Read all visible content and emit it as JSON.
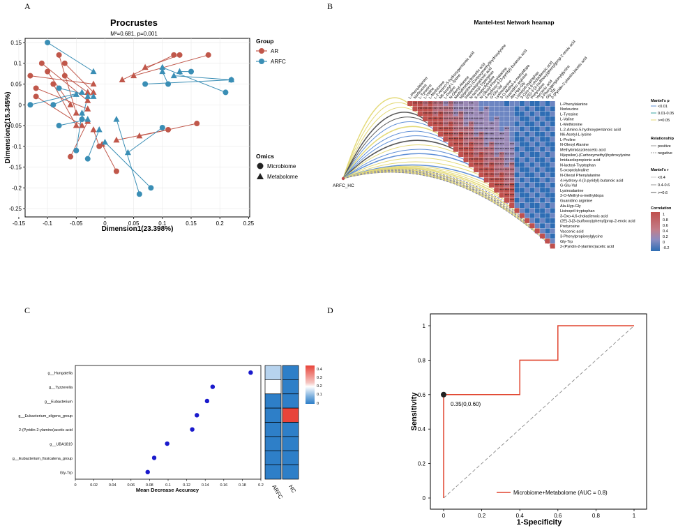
{
  "panels": {
    "a": "A",
    "b": "B",
    "c": "C",
    "d": "D"
  },
  "chart_data": [
    {
      "type": "scatter",
      "title": "Procrustes",
      "subtitle": "M²=0.681, p=0.001",
      "xlabel": "Dimension1(23.398%)",
      "ylabel": "Dimension2(15.345%)",
      "xlim": [
        -0.15,
        0.25
      ],
      "ylim": [
        -0.27,
        0.16
      ],
      "xticks": [
        "-0.15",
        "-0.1",
        "-0.05",
        "0",
        "0.05",
        "0.1",
        "0.15",
        "0.2",
        "0.25"
      ],
      "yticks": [
        "-0.25",
        "-0.2",
        "-0.15",
        "-0.1",
        "-0.05",
        "0",
        "0.05",
        "0.1",
        "0.15"
      ],
      "legend_group_title": "Group",
      "legend_omics_title": "Omics",
      "groups": [
        {
          "name": "AR",
          "color": "#C0574A"
        },
        {
          "name": "ARFC",
          "color": "#3A8EB5"
        }
      ],
      "omics": [
        "Microbiome",
        "Metabolome"
      ],
      "pairs": [
        {
          "group": "AR",
          "m": [
            -0.13,
            0.07
          ],
          "t": [
            -0.02,
            0.05
          ]
        },
        {
          "group": "AR",
          "m": [
            -0.11,
            0.1
          ],
          "t": [
            -0.03,
            0.01
          ]
        },
        {
          "group": "AR",
          "m": [
            -0.08,
            0.12
          ],
          "t": [
            -0.05,
            -0.02
          ]
        },
        {
          "group": "AR",
          "m": [
            -0.12,
            0.02
          ],
          "t": [
            -0.04,
            -0.05
          ]
        },
        {
          "group": "AR",
          "m": [
            -0.1,
            0.08
          ],
          "t": [
            -0.06,
            0.0
          ]
        },
        {
          "group": "AR",
          "m": [
            -0.09,
            0.05
          ],
          "t": [
            -0.05,
            -0.05
          ]
        },
        {
          "group": "AR",
          "m": [
            -0.12,
            0.04
          ],
          "t": [
            -0.03,
            -0.01
          ]
        },
        {
          "group": "AR",
          "m": [
            -0.07,
            0.1
          ],
          "t": [
            -0.02,
            0.03
          ]
        },
        {
          "group": "AR",
          "m": [
            0.12,
            0.12
          ],
          "t": [
            0.03,
            0.06
          ]
        },
        {
          "group": "AR",
          "m": [
            0.18,
            0.12
          ],
          "t": [
            0.05,
            0.07
          ]
        },
        {
          "group": "AR",
          "m": [
            0.13,
            0.12
          ],
          "t": [
            0.07,
            0.09
          ]
        },
        {
          "group": "AR",
          "m": [
            0.16,
            -0.045
          ],
          "t": [
            0.06,
            -0.075
          ]
        },
        {
          "group": "AR",
          "m": [
            0.11,
            -0.06
          ],
          "t": [
            0.02,
            -0.085
          ]
        },
        {
          "group": "AR",
          "m": [
            -0.06,
            -0.125
          ],
          "t": [
            -0.03,
            -0.04
          ]
        },
        {
          "group": "AR",
          "m": [
            -0.01,
            -0.1
          ],
          "t": [
            -0.02,
            -0.06
          ]
        },
        {
          "group": "AR",
          "m": [
            0.02,
            -0.16
          ],
          "t": [
            -0.005,
            -0.095
          ]
        },
        {
          "group": "AR",
          "m": [
            -0.07,
            0.07
          ],
          "t": [
            -0.03,
            0.03
          ]
        },
        {
          "group": "ARFC",
          "m": [
            -0.1,
            0.15
          ],
          "t": [
            -0.02,
            0.08
          ]
        },
        {
          "group": "ARFC",
          "m": [
            -0.13,
            0.0
          ],
          "t": [
            -0.04,
            0.03
          ]
        },
        {
          "group": "ARFC",
          "m": [
            -0.09,
            0.0
          ],
          "t": [
            -0.05,
            0.025
          ]
        },
        {
          "group": "ARFC",
          "m": [
            -0.08,
            -0.05
          ],
          "t": [
            -0.03,
            -0.035
          ]
        },
        {
          "group": "ARFC",
          "m": [
            0.07,
            0.05
          ],
          "t": [
            0.22,
            0.06
          ]
        },
        {
          "group": "ARFC",
          "m": [
            0.11,
            0.05
          ],
          "t": [
            0.1,
            0.08
          ]
        },
        {
          "group": "ARFC",
          "m": [
            0.15,
            0.08
          ],
          "t": [
            0.13,
            0.08
          ]
        },
        {
          "group": "ARFC",
          "m": [
            0.21,
            0.03
          ],
          "t": [
            0.1,
            0.09
          ]
        },
        {
          "group": "ARFC",
          "m": [
            0.22,
            0.06
          ],
          "t": [
            0.12,
            0.07
          ]
        },
        {
          "group": "ARFC",
          "m": [
            0.1,
            -0.055
          ],
          "t": [
            0.04,
            -0.115
          ]
        },
        {
          "group": "ARFC",
          "m": [
            0.08,
            -0.2
          ],
          "t": [
            0.0,
            -0.09
          ]
        },
        {
          "group": "ARFC",
          "m": [
            0.06,
            -0.215
          ],
          "t": [
            0.02,
            -0.035
          ]
        },
        {
          "group": "ARFC",
          "m": [
            -0.04,
            -0.035
          ],
          "t": [
            -0.03,
            0.02
          ]
        },
        {
          "group": "ARFC",
          "m": [
            -0.03,
            -0.13
          ],
          "t": [
            -0.01,
            -0.06
          ]
        },
        {
          "group": "ARFC",
          "m": [
            -0.08,
            0.04
          ],
          "t": [
            -0.02,
            0.02
          ]
        },
        {
          "group": "ARFC",
          "m": [
            -0.05,
            -0.11
          ],
          "t": [
            -0.04,
            -0.02
          ]
        }
      ]
    },
    {
      "type": "heatmap",
      "title": "Mantel-test Network heamap",
      "node_label": "ARFC_HC",
      "features": [
        "L-Phenylalanine",
        "Norleucine",
        "L-Tyrosine",
        "L-Valine",
        "L-Methionine",
        "L-2-Amino-5-hydroxypentanoic acid",
        "N6-Acetyl-L-lysine",
        "L-Proline",
        "N-Oleoyl Alanine",
        "Methylimidazoleacetic acid",
        "N(epsilon)-(Carboxymethyl)hydroxylysine",
        "Imidazolepropionic acid",
        "N-lactoyl-Tryptophan",
        "5-oxoprolylvaline",
        "N-Oleoyl Phenylalanine",
        "4-Hydroxy-4-(3-pyridyl)-butanoic acid",
        "G-Glu-Val",
        "Lysinoalanine",
        "3-O-Methyl-a-methyldopa",
        "Guanidino arginine",
        "Ala-Hyp-Gly",
        "Lisinopril-tryptophan",
        "3-Oxo-4,6-choladienoic acid",
        "(2E)-3-[3-(sulfooxy)phenyl]prop-2-enoic acid",
        "Pretyrosine",
        "Vaccenic acid",
        "3-Phenylpropionylglycine",
        "Gly-Trp",
        "2-(Pyridin-2-ylamino)acetic acid"
      ],
      "legend_mantel_p_title": "Mantel's p",
      "legend_mantel_p": [
        "<0.01",
        "0.01-0.05",
        ">=0.05"
      ],
      "legend_relationship_title": "Relationship",
      "legend_relationship": [
        "positive",
        "negative"
      ],
      "legend_mantel_r_title": "Mantel's r",
      "legend_mantel_r": [
        "<0.4",
        "0.4-0.6",
        ">=0.6"
      ],
      "legend_corr_title": "Correlation",
      "legend_corr_ticks": [
        "1",
        "0.8",
        "0.6",
        "0.4",
        "0.2",
        "0",
        "-0.2"
      ],
      "colors": {
        "high": "#C0504D",
        "low": "#2E6DB4",
        "p_sig": "#5F8FD6",
        "p_mid": "#3AA5A0",
        "p_ns": "#E4DA7A",
        "neg": "#7A7DB0"
      }
    },
    {
      "type": "scatter",
      "xlabel": "Mean Decrease Accuracy",
      "xlim": [
        0,
        0.2
      ],
      "xticks": [
        "0",
        "0.02",
        "0.04",
        "0.06",
        "0.08",
        "0.1",
        "0.12",
        "0.14",
        "0.16",
        "0.18",
        "0.2"
      ],
      "categories": [
        "g__Hungatella",
        "g__Tyzzerella",
        "g__Eubacterium",
        "g__Eubacterium_eligens_group",
        "2-(Pyridin-2-ylamino)acetic acid",
        "g__UBA1819",
        "g__Eubacterium_fissicatena_group",
        "Gly-Trp"
      ],
      "values": [
        0.189,
        0.148,
        0.142,
        0.131,
        0.126,
        0.099,
        0.085,
        0.078
      ],
      "point_color": "#1A1ACC",
      "heat_columns": [
        "ARFC",
        "HC"
      ],
      "heat_values": [
        [
          0.15,
          0.07
        ],
        [
          0.2,
          0.07
        ],
        [
          0.07,
          0.07
        ],
        [
          0.07,
          0.45
        ],
        [
          0.07,
          0.07
        ],
        [
          0.07,
          0.07
        ],
        [
          0.07,
          0.07
        ],
        [
          0.07,
          0.07
        ]
      ],
      "heat_ticks": [
        "0.4",
        "0.3",
        "0.2",
        "0.1",
        "0"
      ]
    },
    {
      "type": "line",
      "xlabel": "1-Specificity",
      "ylabel": "Sensitivity",
      "xlim": [
        0,
        1
      ],
      "ylim": [
        0,
        1
      ],
      "xticks": [
        "0",
        "0.2",
        "0.4",
        "0.6",
        "0.8",
        "1"
      ],
      "yticks": [
        "0",
        "0.2",
        "0.4",
        "0.6",
        "0.8",
        "1"
      ],
      "series": [
        {
          "name": "Microbiome+Metabolome (AUC = 0.8)",
          "x": [
            0,
            0,
            0.4,
            0.4,
            0.6,
            0.6,
            1
          ],
          "y": [
            0,
            0.6,
            0.6,
            0.8,
            0.8,
            1,
            1
          ],
          "color": "#E0442E"
        }
      ],
      "best_point": {
        "x": 0,
        "y": 0.6,
        "label": "0.35(0,0.60)"
      }
    }
  ]
}
